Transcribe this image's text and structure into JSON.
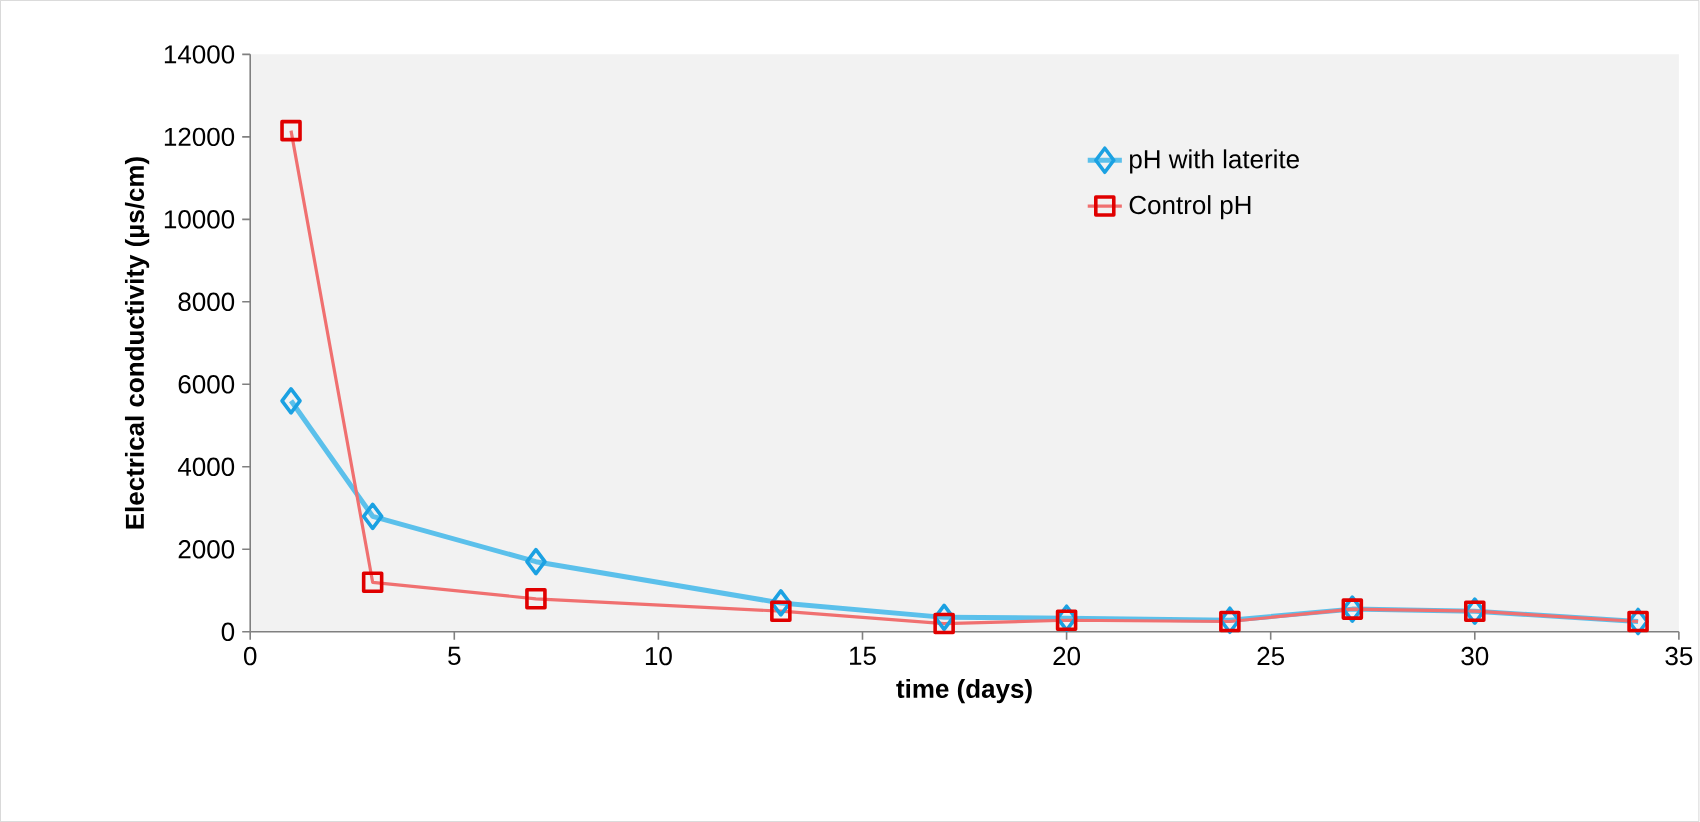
{
  "chart_data": {
    "type": "line",
    "xlabel": "time (days)",
    "ylabel": "Electrical conductivity  (µs/cm)",
    "x": [
      1,
      3,
      7,
      13,
      17,
      20,
      24,
      27,
      30,
      34
    ],
    "series": [
      {
        "name": "pH with laterite",
        "color": "#5bc0eb",
        "marker": "diamond",
        "values": [
          5600,
          2800,
          1700,
          700,
          350,
          330,
          280,
          550,
          500,
          250
        ]
      },
      {
        "name": "Control pH",
        "color": "#f07070",
        "marker": "square",
        "values": [
          12150,
          1200,
          800,
          500,
          200,
          280,
          250,
          550,
          500,
          250
        ]
      }
    ],
    "xlim": [
      0,
      35
    ],
    "xticks": [
      0,
      5,
      10,
      15,
      20,
      25,
      30,
      35
    ],
    "ylim": [
      0,
      14000
    ],
    "yticks": [
      0,
      2000,
      4000,
      6000,
      8000,
      10000,
      12000,
      14000
    ],
    "grid": false,
    "legend": "top right"
  }
}
